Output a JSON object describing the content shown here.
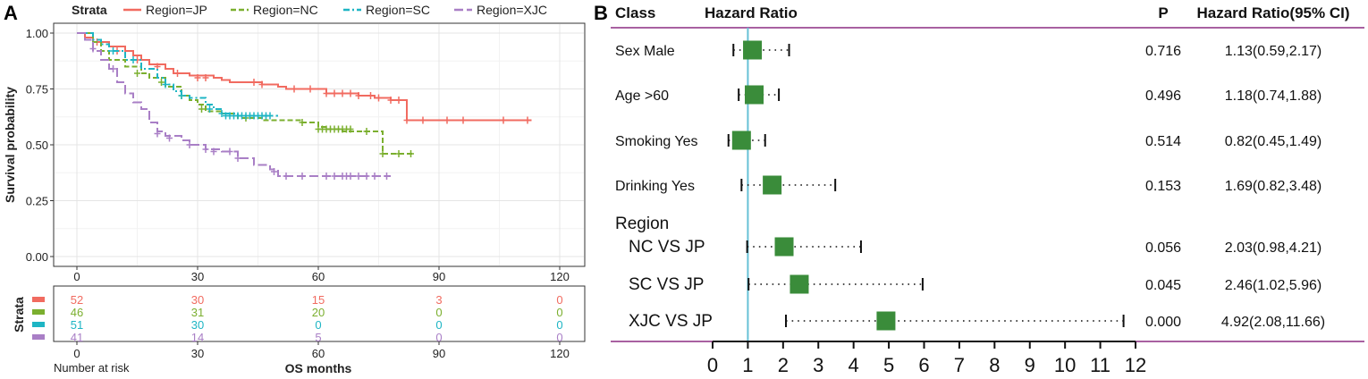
{
  "chart_data": [
    {
      "type": "line",
      "panel_label": "A",
      "ylabel": "Survival probability",
      "xlabel": "OS months",
      "xlim": [
        0,
        120
      ],
      "ylim": [
        0,
        1
      ],
      "x_ticks": [
        "0",
        "30",
        "60",
        "90",
        "120"
      ],
      "y_ticks": [
        "0.00",
        "0.25",
        "0.50",
        "0.75",
        "1.00"
      ],
      "legend_title": "Strata",
      "legend_position": "top",
      "series": [
        {
          "name": "Region=JP",
          "color": "#F16B60",
          "steps": [
            [
              0,
              1
            ],
            [
              2,
              0.98
            ],
            [
              4,
              0.96
            ],
            [
              8,
              0.94
            ],
            [
              12,
              0.92
            ],
            [
              14,
              0.9
            ],
            [
              16,
              0.88
            ],
            [
              18,
              0.86
            ],
            [
              22,
              0.84
            ],
            [
              24,
              0.82
            ],
            [
              28,
              0.81
            ],
            [
              34,
              0.8
            ],
            [
              36,
              0.79
            ],
            [
              38,
              0.78
            ],
            [
              40,
              0.78
            ],
            [
              46,
              0.77
            ],
            [
              50,
              0.76
            ],
            [
              52,
              0.75
            ],
            [
              62,
              0.73
            ],
            [
              70,
              0.72
            ],
            [
              74,
              0.71
            ],
            [
              78,
              0.7
            ],
            [
              82,
              0.61
            ],
            [
              113,
              0.61
            ]
          ],
          "censors": [
            [
              5,
              0.96
            ],
            [
              10,
              0.92
            ],
            [
              15,
              0.88
            ],
            [
              20,
              0.85
            ],
            [
              25,
              0.82
            ],
            [
              30,
              0.8
            ],
            [
              32,
              0.8
            ],
            [
              44,
              0.78
            ],
            [
              46,
              0.77
            ],
            [
              54,
              0.75
            ],
            [
              58,
              0.75
            ],
            [
              62,
              0.73
            ],
            [
              64,
              0.73
            ],
            [
              66,
              0.73
            ],
            [
              68,
              0.73
            ],
            [
              70,
              0.72
            ],
            [
              73,
              0.72
            ],
            [
              75,
              0.71
            ],
            [
              78,
              0.7
            ],
            [
              80,
              0.7
            ],
            [
              82,
              0.61
            ],
            [
              86,
              0.61
            ],
            [
              92,
              0.61
            ],
            [
              96,
              0.61
            ],
            [
              106,
              0.61
            ],
            [
              112,
              0.61
            ]
          ]
        },
        {
          "name": "Region=NC",
          "color": "#7BAF2F",
          "steps": [
            [
              0,
              1
            ],
            [
              4,
              0.96
            ],
            [
              6,
              0.92
            ],
            [
              8,
              0.88
            ],
            [
              12,
              0.85
            ],
            [
              16,
              0.82
            ],
            [
              18,
              0.8
            ],
            [
              22,
              0.76
            ],
            [
              26,
              0.72
            ],
            [
              28,
              0.7
            ],
            [
              30,
              0.68
            ],
            [
              32,
              0.65
            ],
            [
              36,
              0.64
            ],
            [
              40,
              0.62
            ],
            [
              46,
              0.61
            ],
            [
              56,
              0.6
            ],
            [
              60,
              0.58
            ],
            [
              62,
              0.57
            ],
            [
              66,
              0.56
            ],
            [
              74,
              0.56
            ],
            [
              76,
              0.46
            ],
            [
              84,
              0.46
            ]
          ],
          "censors": [
            [
              15,
              0.82
            ],
            [
              21,
              0.78
            ],
            [
              26,
              0.72
            ],
            [
              31,
              0.66
            ],
            [
              42,
              0.62
            ],
            [
              56,
              0.6
            ],
            [
              60,
              0.57
            ],
            [
              61,
              0.57
            ],
            [
              62,
              0.57
            ],
            [
              63,
              0.57
            ],
            [
              64,
              0.57
            ],
            [
              65,
              0.57
            ],
            [
              66,
              0.57
            ],
            [
              67,
              0.57
            ],
            [
              68,
              0.57
            ],
            [
              72,
              0.56
            ],
            [
              76,
              0.46
            ],
            [
              80,
              0.46
            ],
            [
              83,
              0.46
            ]
          ]
        },
        {
          "name": "Region=SC",
          "color": "#1EB5C4",
          "steps": [
            [
              0,
              1
            ],
            [
              4,
              0.97
            ],
            [
              6,
              0.95
            ],
            [
              8,
              0.92
            ],
            [
              12,
              0.88
            ],
            [
              16,
              0.84
            ],
            [
              20,
              0.8
            ],
            [
              22,
              0.77
            ],
            [
              24,
              0.74
            ],
            [
              26,
              0.72
            ],
            [
              28,
              0.71
            ],
            [
              32,
              0.68
            ],
            [
              34,
              0.66
            ],
            [
              36,
              0.64
            ],
            [
              40,
              0.63
            ],
            [
              50,
              0.63
            ]
          ],
          "censors": [
            [
              9,
              0.92
            ],
            [
              14,
              0.88
            ],
            [
              22,
              0.77
            ],
            [
              26,
              0.72
            ],
            [
              33,
              0.66
            ],
            [
              36,
              0.64
            ],
            [
              37,
              0.63
            ],
            [
              38,
              0.63
            ],
            [
              39,
              0.63
            ],
            [
              40,
              0.63
            ],
            [
              41,
              0.63
            ],
            [
              42,
              0.63
            ],
            [
              43,
              0.63
            ],
            [
              44,
              0.63
            ],
            [
              45,
              0.63
            ],
            [
              46,
              0.63
            ],
            [
              47,
              0.63
            ],
            [
              48,
              0.63
            ]
          ]
        },
        {
          "name": "Region=XJC",
          "color": "#A97FC6",
          "steps": [
            [
              0,
              1
            ],
            [
              2,
              0.97
            ],
            [
              4,
              0.92
            ],
            [
              6,
              0.88
            ],
            [
              8,
              0.84
            ],
            [
              10,
              0.78
            ],
            [
              12,
              0.73
            ],
            [
              14,
              0.69
            ],
            [
              16,
              0.66
            ],
            [
              18,
              0.6
            ],
            [
              20,
              0.56
            ],
            [
              22,
              0.54
            ],
            [
              26,
              0.52
            ],
            [
              28,
              0.5
            ],
            [
              32,
              0.48
            ],
            [
              36,
              0.47
            ],
            [
              40,
              0.44
            ],
            [
              44,
              0.41
            ],
            [
              48,
              0.39
            ],
            [
              50,
              0.36
            ],
            [
              78,
              0.36
            ]
          ],
          "censors": [
            [
              4,
              0.93
            ],
            [
              9,
              0.84
            ],
            [
              20,
              0.55
            ],
            [
              23,
              0.53
            ],
            [
              28,
              0.5
            ],
            [
              32,
              0.48
            ],
            [
              34,
              0.47
            ],
            [
              38,
              0.47
            ],
            [
              40,
              0.44
            ],
            [
              49,
              0.38
            ],
            [
              52,
              0.36
            ],
            [
              56,
              0.36
            ],
            [
              62,
              0.36
            ],
            [
              64,
              0.36
            ],
            [
              66,
              0.36
            ],
            [
              67,
              0.36
            ],
            [
              68,
              0.36
            ],
            [
              70,
              0.36
            ],
            [
              72,
              0.36
            ],
            [
              74,
              0.36
            ],
            [
              77,
              0.36
            ]
          ]
        }
      ],
      "risk_table": {
        "ylabel": "Strata",
        "title": "Number at risk",
        "times": [
          0,
          30,
          60,
          90,
          120
        ],
        "rows": [
          {
            "name": "Region=JP",
            "color": "#F16B60",
            "values": [
              "52",
              "30",
              "15",
              "3",
              "0"
            ]
          },
          {
            "name": "Region=NC",
            "color": "#7BAF2F",
            "values": [
              "46",
              "31",
              "20",
              "0",
              "0"
            ]
          },
          {
            "name": "Region=SC",
            "color": "#1EB5C4",
            "values": [
              "51",
              "30",
              "0",
              "0",
              "0"
            ]
          },
          {
            "name": "Region=XJC",
            "color": "#A97FC6",
            "values": [
              "41",
              "14",
              "5",
              "0",
              "0"
            ]
          }
        ]
      }
    },
    {
      "type": "forest",
      "panel_label": "B",
      "headers": {
        "class": "Class",
        "hr": "Hazard Ratio",
        "p": "P",
        "ci": "Hazard Ratio(95% CI)"
      },
      "xlim": [
        0,
        12
      ],
      "x_ticks": [
        "0",
        "1",
        "2",
        "3",
        "4",
        "5",
        "6",
        "7",
        "8",
        "9",
        "10",
        "11",
        "12"
      ],
      "reference_line": 1,
      "reference_color": "#67C1D6",
      "marker_color": "#3A8C3A",
      "rule_color": "#8B2D82",
      "group_label": "Region",
      "rows": [
        {
          "label": "Sex Male",
          "hr": 1.13,
          "lower": 0.59,
          "upper": 2.17,
          "p": "0.716",
          "ci": "1.13(0.59,2.17)",
          "indent": false
        },
        {
          "label": "Age >60",
          "hr": 1.18,
          "lower": 0.74,
          "upper": 1.88,
          "p": "0.496",
          "ci": "1.18(0.74,1.88)",
          "indent": false
        },
        {
          "label": "Smoking Yes",
          "hr": 0.82,
          "lower": 0.45,
          "upper": 1.49,
          "p": "0.514",
          "ci": "0.82(0.45,1.49)",
          "indent": false
        },
        {
          "label": "Drinking Yes",
          "hr": 1.69,
          "lower": 0.82,
          "upper": 3.48,
          "p": "0.153",
          "ci": "1.69(0.82,3.48)",
          "indent": false
        },
        {
          "label": "NC VS JP",
          "hr": 2.03,
          "lower": 0.98,
          "upper": 4.21,
          "p": "0.056",
          "ci": "2.03(0.98,4.21)",
          "indent": true
        },
        {
          "label": "SC VS JP",
          "hr": 2.46,
          "lower": 1.02,
          "upper": 5.96,
          "p": "0.045",
          "ci": "2.46(1.02,5.96)",
          "indent": true
        },
        {
          "label": "XJC VS JP",
          "hr": 4.92,
          "lower": 2.08,
          "upper": 11.66,
          "p": "0.000",
          "ci": "4.92(2.08,11.66)",
          "indent": true
        }
      ]
    }
  ]
}
